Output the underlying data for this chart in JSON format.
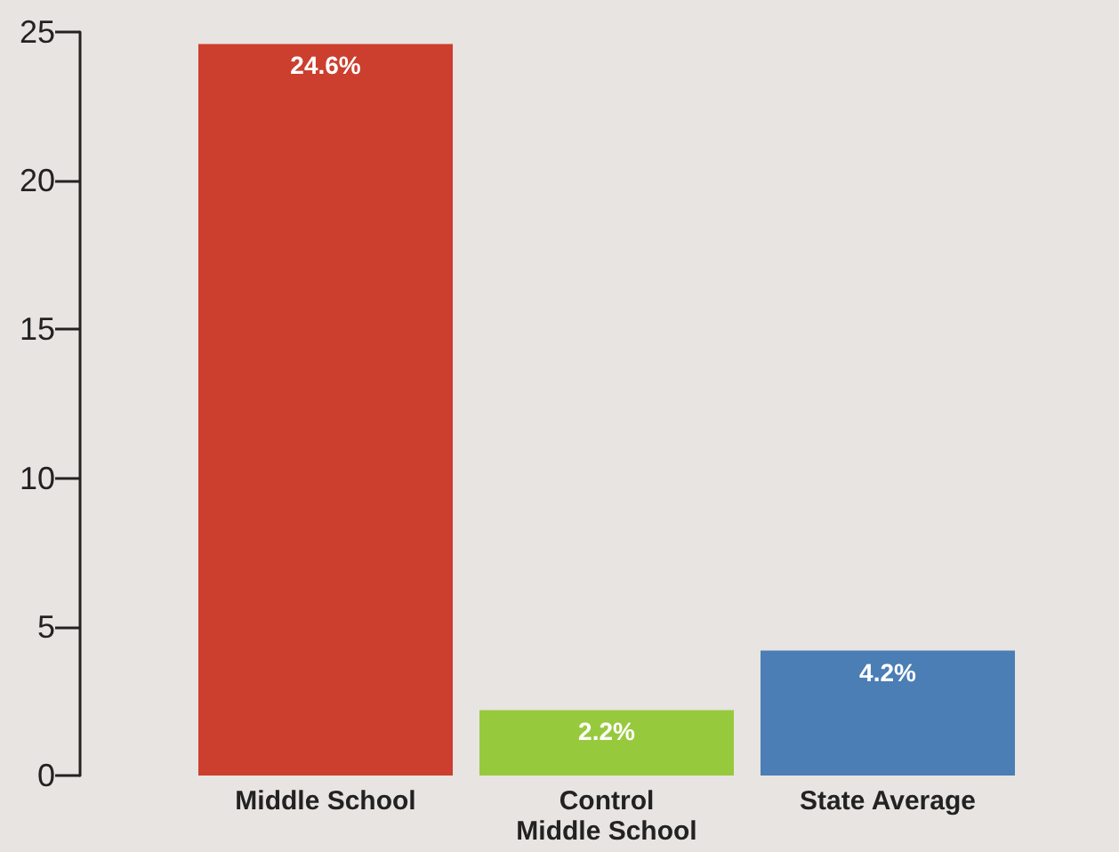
{
  "chart_data": {
    "type": "bar",
    "categories": [
      "Middle School",
      "Control\nMiddle School",
      "State Average"
    ],
    "values": [
      24.6,
      2.2,
      4.2
    ],
    "colors": [
      "#cc3e2e",
      "#97c93d",
      "#4a7eb4"
    ],
    "value_labels": [
      "24.6%",
      "2.2%",
      "4.2%"
    ],
    "ylim": [
      0,
      25
    ],
    "yticks": [
      0,
      5,
      10,
      15,
      20,
      25
    ]
  }
}
